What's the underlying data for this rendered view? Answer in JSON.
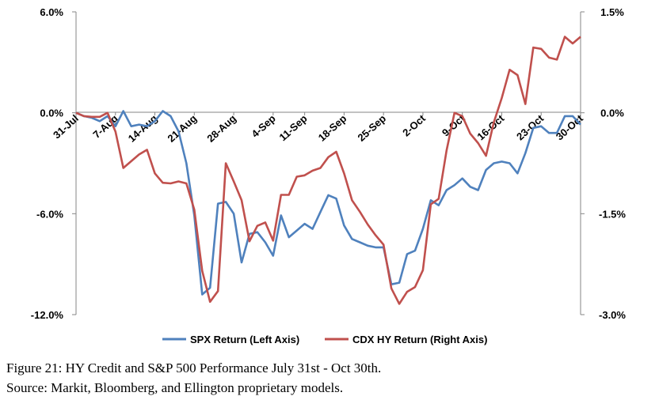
{
  "chart_data": {
    "type": "line",
    "x": [
      "31-Jul",
      "3-Aug",
      "4-Aug",
      "5-Aug",
      "6-Aug",
      "7-Aug",
      "10-Aug",
      "11-Aug",
      "12-Aug",
      "13-Aug",
      "14-Aug",
      "17-Aug",
      "18-Aug",
      "19-Aug",
      "20-Aug",
      "21-Aug",
      "24-Aug",
      "25-Aug",
      "26-Aug",
      "27-Aug",
      "28-Aug",
      "31-Aug",
      "1-Sep",
      "2-Sep",
      "3-Sep",
      "4-Sep",
      "8-Sep",
      "9-Sep",
      "10-Sep",
      "11-Sep",
      "14-Sep",
      "15-Sep",
      "16-Sep",
      "17-Sep",
      "18-Sep",
      "21-Sep",
      "22-Sep",
      "23-Sep",
      "24-Sep",
      "25-Sep",
      "28-Sep",
      "29-Sep",
      "30-Sep",
      "1-Oct",
      "2-Oct",
      "5-Oct",
      "6-Oct",
      "7-Oct",
      "8-Oct",
      "9-Oct",
      "12-Oct",
      "13-Oct",
      "14-Oct",
      "15-Oct",
      "16-Oct",
      "19-Oct",
      "20-Oct",
      "21-Oct",
      "22-Oct",
      "23-Oct",
      "26-Oct",
      "27-Oct",
      "28-Oct",
      "29-Oct",
      "30-Oct"
    ],
    "x_tick_labels": [
      "31-Jul",
      "7-Aug",
      "14-Aug",
      "21-Aug",
      "28-Aug",
      "4-Sep",
      "11-Sep",
      "18-Sep",
      "25-Sep",
      "2-Oct",
      "9-Oct",
      "16-Oct",
      "23-Oct",
      "30-Oct"
    ],
    "series": [
      {
        "name": "SPX Return (Left Axis)",
        "axis": "left",
        "color": "#4f81bd",
        "values": [
          0.0,
          -0.2,
          -0.3,
          -0.5,
          -0.2,
          -0.8,
          0.1,
          -0.8,
          -0.7,
          -0.8,
          -0.5,
          0.1,
          -0.2,
          -1.1,
          -3.0,
          -6.1,
          -10.8,
          -10.4,
          -5.4,
          -5.3,
          -6.0,
          -8.9,
          -7.2,
          -7.1,
          -7.7,
          -8.5,
          -6.1,
          -7.4,
          -7.0,
          -6.6,
          -6.9,
          -5.9,
          -4.9,
          -5.1,
          -6.7,
          -7.5,
          -7.7,
          -7.9,
          -8.0,
          -8.0,
          -10.2,
          -10.1,
          -8.4,
          -8.2,
          -6.9,
          -5.2,
          -5.5,
          -4.6,
          -4.3,
          -3.9,
          -4.4,
          -4.6,
          -3.4,
          -3.0,
          -2.9,
          -3.0,
          -3.6,
          -2.4,
          -0.9,
          -0.8,
          -1.2,
          -1.2,
          -0.2,
          -0.2,
          -0.7
        ]
      },
      {
        "name": "CDX HY Return (Right Axis)",
        "axis": "right",
        "color": "#c0504d",
        "values": [
          0.0,
          -0.05,
          -0.06,
          -0.06,
          0.0,
          -0.28,
          -0.82,
          -0.72,
          -0.62,
          -0.55,
          -0.9,
          -1.04,
          -1.05,
          -1.02,
          -1.05,
          -1.44,
          -2.35,
          -2.81,
          -2.65,
          -0.75,
          -1.02,
          -1.3,
          -1.91,
          -1.68,
          -1.63,
          -1.9,
          -1.22,
          -1.22,
          -0.95,
          -0.93,
          -0.86,
          -0.82,
          -0.66,
          -0.58,
          -0.9,
          -1.3,
          -1.47,
          -1.66,
          -1.82,
          -1.96,
          -2.61,
          -2.84,
          -2.66,
          -2.59,
          -2.34,
          -1.36,
          -1.28,
          -0.56,
          0.0,
          -0.05,
          -0.31,
          -0.45,
          -0.64,
          -0.14,
          0.22,
          0.64,
          0.56,
          0.13,
          0.97,
          0.95,
          0.82,
          0.79,
          1.13,
          1.03,
          1.13
        ]
      }
    ],
    "y_left": {
      "ylim": [
        -12.0,
        6.0
      ],
      "ticks": [
        "6.0%",
        "0.0%",
        "-6.0%",
        "-12.0%"
      ],
      "tick_values": [
        6.0,
        0.0,
        -6.0,
        -12.0
      ]
    },
    "y_right": {
      "ylim": [
        -3.0,
        1.5
      ],
      "ticks": [
        "1.5%",
        "0.0%",
        "-1.5%",
        "-3.0%"
      ],
      "tick_values": [
        1.5,
        0.0,
        -1.5,
        -3.0
      ]
    },
    "grid": false,
    "legend_position": "bottom",
    "caption_line1": "Figure 21: HY Credit and S&P 500 Performance July 31st - Oct 30th.",
    "caption_line2": "Source: Markit, Bloomberg, and Ellington proprietary models."
  }
}
